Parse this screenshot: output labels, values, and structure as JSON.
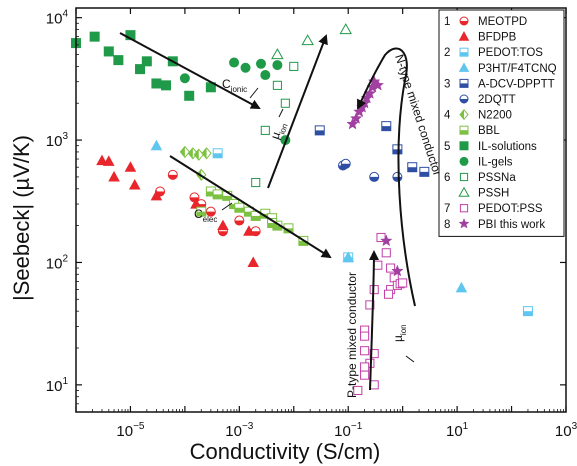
{
  "chart_data": {
    "type": "scatter",
    "xlabel": "Conductivity (S/cm)",
    "ylabel": "|Seebeck| (µV/K)",
    "xscale": "log",
    "yscale": "log",
    "xlim": [
      1e-06,
      1000
    ],
    "ylim": [
      6,
      12000
    ],
    "xticks": [
      "10^-5",
      "10^-3",
      "10^-1",
      "10^1",
      "10^3"
    ],
    "yticks": [
      "10^1",
      "10^2",
      "10^3",
      "10^4"
    ],
    "legend_position": "top-right",
    "legend_groups": [
      "1",
      "2",
      "3",
      "4",
      "5",
      "6",
      "7",
      "8"
    ],
    "series": [
      {
        "name": "MEOTPD",
        "group": "1",
        "marker": "half-circle",
        "color": "#e8262b",
        "x": [
          3.5e-05,
          6e-05,
          0.00015,
          0.0002,
          0.0003,
          0.001,
          0.002,
          0.0005
        ],
        "y": [
          380,
          520,
          340,
          300,
          260,
          220,
          180,
          180
        ]
      },
      {
        "name": "BFDPB",
        "group": "1",
        "marker": "triangle",
        "color": "#e8262b",
        "x": [
          7e-07,
          3e-06,
          4e-06,
          5e-06,
          1e-05,
          1.2e-05,
          3e-05,
          0.00016,
          0.0018,
          0.0015,
          0.0005
        ],
        "y": [
          880,
          680,
          670,
          500,
          600,
          430,
          350,
          300,
          100,
          180,
          200
        ]
      },
      {
        "name": "PEDOT:TOS",
        "group": "2",
        "marker": "half-square",
        "color": "#5fc6ef",
        "x": [
          0.0004,
          0.1,
          200
        ],
        "y": [
          780,
          110,
          40
        ]
      },
      {
        "name": "P3HT/F4TCNQ",
        "group": "2",
        "marker": "triangle",
        "color": "#5fc6ef",
        "x": [
          3e-05,
          0.1,
          12
        ],
        "y": [
          900,
          110,
          62
        ]
      },
      {
        "name": "A-DCV-DPPTT",
        "group": "3",
        "marker": "half-square",
        "color": "#2e4fa3",
        "x": [
          0.03,
          0.5,
          0.8,
          1.5,
          2.5
        ],
        "y": [
          1200,
          1300,
          840,
          600,
          550
        ]
      },
      {
        "name": "2DQTT",
        "group": "3",
        "marker": "half-circle",
        "color": "#2e4fa3",
        "x": [
          0.08,
          0.09,
          0.3,
          0.8
        ],
        "y": [
          620,
          640,
          500,
          500
        ]
      },
      {
        "name": "N2200",
        "group": "4",
        "marker": "half-diamond",
        "color": "#7dc142",
        "x": [
          0.0001,
          0.00014,
          0.00018,
          0.00025,
          0.0002
        ],
        "y": [
          800,
          780,
          760,
          780,
          520
        ]
      },
      {
        "name": "BBL",
        "group": "4",
        "marker": "half-square",
        "color": "#7dc142",
        "x": [
          0.0002,
          0.0003,
          0.0004,
          0.0006,
          0.0008,
          0.001,
          0.0015,
          0.002,
          0.003,
          0.004,
          0.005,
          0.008,
          0.015,
          0.004
        ],
        "y": [
          260,
          380,
          360,
          350,
          300,
          280,
          260,
          240,
          250,
          230,
          200,
          190,
          150,
          210
        ]
      },
      {
        "name": "IL-solutions",
        "group": "5",
        "marker": "square",
        "color": "#1f9a48",
        "x": [
          1e-06,
          2.2e-06,
          4e-06,
          6e-06,
          1e-05,
          1.5e-05,
          2e-05,
          3e-05,
          4.5e-05,
          6e-05,
          0.00012,
          0.0003
        ],
        "y": [
          6200,
          7000,
          5300,
          4500,
          7200,
          3800,
          4400,
          2900,
          2800,
          4400,
          2300,
          2700
        ]
      },
      {
        "name": "IL-gels",
        "group": "5",
        "marker": "circle",
        "color": "#1f9a48",
        "x": [
          0.0001,
          0.0008,
          0.0013,
          0.0025,
          0.005,
          0.003,
          0.007
        ],
        "y": [
          3200,
          4300,
          3900,
          4200,
          4100,
          3400,
          1000
        ]
      },
      {
        "name": "PSSNa",
        "group": "6",
        "marker": "open-square",
        "color": "#1f9a48",
        "x": [
          0.002,
          0.003,
          0.005,
          0.01,
          0.007
        ],
        "y": [
          450,
          1200,
          2800,
          4000,
          2000
        ]
      },
      {
        "name": "PSSH",
        "group": "6",
        "marker": "open-triangle",
        "color": "#1f9a48",
        "x": [
          0.005,
          0.018,
          0.09
        ],
        "y": [
          5000,
          6500,
          8000
        ]
      },
      {
        "name": "PEDOT:PSS",
        "group": "7",
        "marker": "open-square",
        "color": "#c040a8",
        "x": [
          0.15,
          0.2,
          0.25,
          0.3,
          0.2,
          0.25,
          0.3,
          0.35,
          0.4,
          0.5,
          0.6,
          0.7,
          0.6,
          0.55,
          0.8,
          0.9,
          1.0,
          0.3,
          0.2,
          0.2,
          0.2
        ],
        "y": [
          9,
          12,
          15,
          18,
          28,
          45,
          60,
          95,
          160,
          120,
          90,
          75,
          60,
          55,
          65,
          67,
          68,
          10,
          14,
          19,
          25
        ]
      },
      {
        "name": "PBI this work",
        "group": "8",
        "marker": "star",
        "color": "#a040a0",
        "x": [
          0.12,
          0.14,
          0.16,
          0.18,
          0.2,
          0.22,
          0.25,
          0.28,
          0.3,
          0.35,
          0.5,
          0.8
        ],
        "y": [
          1350,
          1500,
          1700,
          1850,
          2000,
          2200,
          2400,
          2700,
          3000,
          2800,
          150,
          85
        ]
      }
    ],
    "annotations": [
      {
        "text": "C",
        "sub": "ionic"
      },
      {
        "text": "C",
        "sub": "elec"
      },
      {
        "text": "µ",
        "sub": "ion"
      },
      {
        "text": "µ",
        "sub": "ion"
      },
      {
        "text": "N-type mixed conductor"
      },
      {
        "text": "P-type mixed conductor"
      }
    ]
  }
}
